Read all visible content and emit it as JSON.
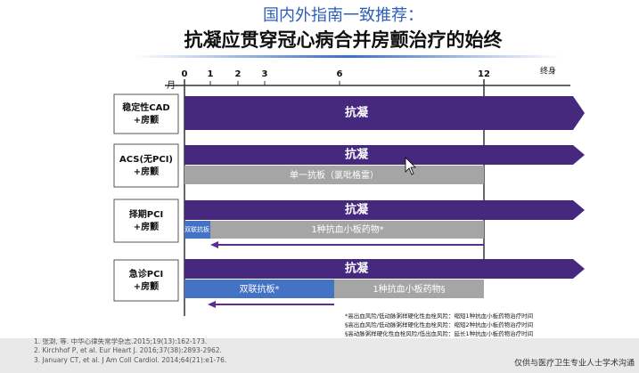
{
  "header": {
    "title": "国内外指南一致推荐：",
    "subtitle": "抗凝应贯穿冠心病合并房颤治疗的始终"
  },
  "axis": {
    "unit": "月",
    "ticks": [
      "0",
      "1",
      "2",
      "3",
      "6",
      "12",
      "终身"
    ]
  },
  "rows": [
    {
      "label": [
        "稳定性CAD",
        "+房颤"
      ],
      "bars": [
        "抗凝"
      ]
    },
    {
      "label": [
        "ACS(无PCI)",
        "+房颤"
      ],
      "bars": [
        "抗凝",
        "单一抗板（氯吡格雷）"
      ]
    },
    {
      "label": [
        "择期PCI",
        "+房颤"
      ],
      "bars": [
        "抗凝",
        "双联抗板",
        "1种抗血小板药物*"
      ]
    },
    {
      "label": [
        "急诊PCI",
        "+房颤"
      ],
      "bars": [
        "抗凝",
        "双联抗板*",
        "1种抗血小板药物§"
      ]
    }
  ],
  "notes": [
    "*高出血风险/低动脉粥样硬化性血栓风险：缩短1种抗血小板药物治疗时间",
    "§高出血风险/低动脉粥样硬化性血栓风险：缩短2种抗血小板药物治疗时间",
    "§高动脉粥样硬化性血栓风险/低出血风险：延长1种抗血小板药物治疗时间"
  ],
  "references": [
    "1.   张澍, 等. 中华心律失常学杂志.2015;19(13):162-173.",
    "2.   Kirchhof P, et al. Eur Heart J. 2016;37(38):2893-2962.",
    "3.   January CT, et al. J Am Coll Cardiol. 2014;64(21):e1-76."
  ],
  "footer": "仅供与医疗卫生专业人士学术沟通"
}
